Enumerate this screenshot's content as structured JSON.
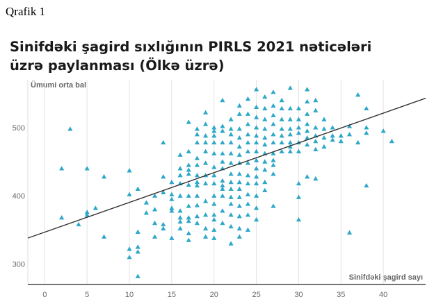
{
  "figure_label": "Qrafik 1",
  "chart_data": {
    "type": "scatter",
    "title": "Sinifdəki şagird sıxlığının PIRLS 2021 nəticələri üzrə paylanması (Ölkə üzrə)",
    "xlabel": "Sinifdəki şagird sayı",
    "ylabel": "Ümumi orta bal",
    "xlim": [
      -2,
      45
    ],
    "ylim": [
      270,
      570
    ],
    "xticks": [
      0,
      5,
      10,
      15,
      20,
      25,
      30,
      35,
      40
    ],
    "yticks": [
      300,
      400,
      500
    ],
    "grid": "vertical",
    "marker": "triangle",
    "colors": {
      "points": "#2ea8c8",
      "trend": "#333333"
    },
    "trendline": {
      "x": [
        -2,
        45
      ],
      "y": [
        338,
        543
      ]
    },
    "points": [
      [
        2,
        368
      ],
      [
        2,
        440
      ],
      [
        3,
        498
      ],
      [
        4,
        358
      ],
      [
        5,
        440
      ],
      [
        5,
        376
      ],
      [
        5,
        372
      ],
      [
        6,
        382
      ],
      [
        7,
        428
      ],
      [
        7,
        340
      ],
      [
        10,
        437
      ],
      [
        10,
        402
      ],
      [
        10,
        322
      ],
      [
        10,
        310
      ],
      [
        11,
        410
      ],
      [
        11,
        347
      ],
      [
        11,
        325
      ],
      [
        11,
        318
      ],
      [
        11,
        282
      ],
      [
        12,
        390
      ],
      [
        12,
        375
      ],
      [
        13,
        400
      ],
      [
        13,
        380
      ],
      [
        13,
        360
      ],
      [
        13,
        340
      ],
      [
        14,
        478
      ],
      [
        14,
        428
      ],
      [
        14,
        405
      ],
      [
        14,
        358
      ],
      [
        14,
        352
      ],
      [
        15,
        420
      ],
      [
        15,
        402
      ],
      [
        15,
        395
      ],
      [
        15,
        382
      ],
      [
        15,
        378
      ],
      [
        15,
        338
      ],
      [
        16,
        460
      ],
      [
        16,
        440
      ],
      [
        16,
        430
      ],
      [
        16,
        418
      ],
      [
        16,
        400
      ],
      [
        16,
        378
      ],
      [
        16,
        368
      ],
      [
        16,
        362
      ],
      [
        16,
        352
      ],
      [
        17,
        508
      ],
      [
        17,
        465
      ],
      [
        17,
        445
      ],
      [
        17,
        438
      ],
      [
        17,
        432
      ],
      [
        17,
        416
      ],
      [
        17,
        400
      ],
      [
        17,
        385
      ],
      [
        17,
        368
      ],
      [
        17,
        363
      ],
      [
        17,
        345
      ],
      [
        17,
        335
      ],
      [
        18,
        498
      ],
      [
        18,
        490
      ],
      [
        18,
        478
      ],
      [
        18,
        455
      ],
      [
        18,
        445
      ],
      [
        18,
        430
      ],
      [
        18,
        420
      ],
      [
        18,
        415
      ],
      [
        18,
        400
      ],
      [
        18,
        386
      ],
      [
        18,
        370
      ],
      [
        18,
        360
      ],
      [
        19,
        522
      ],
      [
        19,
        505
      ],
      [
        19,
        488
      ],
      [
        19,
        478
      ],
      [
        19,
        465
      ],
      [
        19,
        448
      ],
      [
        19,
        430
      ],
      [
        19,
        418
      ],
      [
        19,
        392
      ],
      [
        19,
        372
      ],
      [
        19,
        352
      ],
      [
        19,
        340
      ],
      [
        20,
        500
      ],
      [
        20,
        495
      ],
      [
        20,
        488
      ],
      [
        20,
        478
      ],
      [
        20,
        462
      ],
      [
        20,
        442
      ],
      [
        20,
        430
      ],
      [
        20,
        418
      ],
      [
        20,
        400
      ],
      [
        20,
        388
      ],
      [
        20,
        372
      ],
      [
        20,
        365
      ],
      [
        20,
        350
      ],
      [
        20,
        338
      ],
      [
        21,
        540
      ],
      [
        21,
        502
      ],
      [
        21,
        495
      ],
      [
        21,
        478
      ],
      [
        21,
        462
      ],
      [
        21,
        450
      ],
      [
        21,
        440
      ],
      [
        21,
        422
      ],
      [
        21,
        415
      ],
      [
        21,
        410
      ],
      [
        21,
        400
      ],
      [
        21,
        378
      ],
      [
        21,
        360
      ],
      [
        22,
        512
      ],
      [
        22,
        498
      ],
      [
        22,
        490
      ],
      [
        22,
        478
      ],
      [
        22,
        462
      ],
      [
        22,
        448
      ],
      [
        22,
        432
      ],
      [
        22,
        420
      ],
      [
        22,
        410
      ],
      [
        22,
        398
      ],
      [
        22,
        388
      ],
      [
        22,
        372
      ],
      [
        22,
        355
      ],
      [
        22,
        330
      ],
      [
        23,
        532
      ],
      [
        23,
        520
      ],
      [
        23,
        498
      ],
      [
        23,
        485
      ],
      [
        23,
        472
      ],
      [
        23,
        460
      ],
      [
        23,
        448
      ],
      [
        23,
        432
      ],
      [
        23,
        420
      ],
      [
        23,
        410
      ],
      [
        23,
        398
      ],
      [
        23,
        385
      ],
      [
        23,
        370
      ],
      [
        23,
        352
      ],
      [
        23,
        340
      ],
      [
        24,
        542
      ],
      [
        24,
        520
      ],
      [
        24,
        505
      ],
      [
        24,
        490
      ],
      [
        24,
        478
      ],
      [
        24,
        465
      ],
      [
        24,
        448
      ],
      [
        24,
        430
      ],
      [
        24,
        418
      ],
      [
        24,
        402
      ],
      [
        24,
        388
      ],
      [
        24,
        372
      ],
      [
        24,
        350
      ],
      [
        25,
        556
      ],
      [
        25,
        530
      ],
      [
        25,
        515
      ],
      [
        25,
        500
      ],
      [
        25,
        488
      ],
      [
        25,
        478
      ],
      [
        25,
        465
      ],
      [
        25,
        452
      ],
      [
        25,
        440
      ],
      [
        25,
        428
      ],
      [
        25,
        418
      ],
      [
        25,
        400
      ],
      [
        25,
        382
      ],
      [
        25,
        365
      ],
      [
        26,
        545
      ],
      [
        26,
        528
      ],
      [
        26,
        512
      ],
      [
        26,
        498
      ],
      [
        26,
        485
      ],
      [
        26,
        475
      ],
      [
        26,
        462
      ],
      [
        26,
        450
      ],
      [
        26,
        438
      ],
      [
        26,
        420
      ],
      [
        26,
        408
      ],
      [
        27,
        552
      ],
      [
        27,
        532
      ],
      [
        27,
        518
      ],
      [
        27,
        505
      ],
      [
        27,
        490
      ],
      [
        27,
        478
      ],
      [
        27,
        462
      ],
      [
        27,
        452
      ],
      [
        27,
        445
      ],
      [
        27,
        432
      ],
      [
        27,
        385
      ],
      [
        28,
        540
      ],
      [
        28,
        528
      ],
      [
        28,
        512
      ],
      [
        28,
        498
      ],
      [
        28,
        488
      ],
      [
        28,
        478
      ],
      [
        28,
        465
      ],
      [
        29,
        558
      ],
      [
        29,
        528
      ],
      [
        29,
        512
      ],
      [
        29,
        498
      ],
      [
        29,
        490
      ],
      [
        29,
        478
      ],
      [
        29,
        472
      ],
      [
        29,
        465
      ],
      [
        30,
        528
      ],
      [
        30,
        512
      ],
      [
        30,
        500
      ],
      [
        30,
        492
      ],
      [
        30,
        478
      ],
      [
        30,
        465
      ],
      [
        30,
        418
      ],
      [
        30,
        398
      ],
      [
        30,
        365
      ],
      [
        31,
        556
      ],
      [
        31,
        538
      ],
      [
        31,
        520
      ],
      [
        31,
        505
      ],
      [
        31,
        495
      ],
      [
        31,
        485
      ],
      [
        31,
        475
      ],
      [
        31,
        428
      ],
      [
        32,
        540
      ],
      [
        32,
        525
      ],
      [
        32,
        500
      ],
      [
        32,
        488
      ],
      [
        32,
        480
      ],
      [
        32,
        468
      ],
      [
        32,
        425
      ],
      [
        33,
        512
      ],
      [
        33,
        498
      ],
      [
        33,
        485
      ],
      [
        33,
        472
      ],
      [
        34,
        500
      ],
      [
        34,
        488
      ],
      [
        34,
        482
      ],
      [
        35,
        488
      ],
      [
        35,
        480
      ],
      [
        36,
        502
      ],
      [
        36,
        490
      ],
      [
        36,
        346
      ],
      [
        37,
        548
      ],
      [
        37,
        478
      ],
      [
        38,
        528
      ],
      [
        38,
        500
      ],
      [
        38,
        492
      ],
      [
        38,
        415
      ],
      [
        40,
        495
      ],
      [
        41,
        480
      ]
    ]
  }
}
